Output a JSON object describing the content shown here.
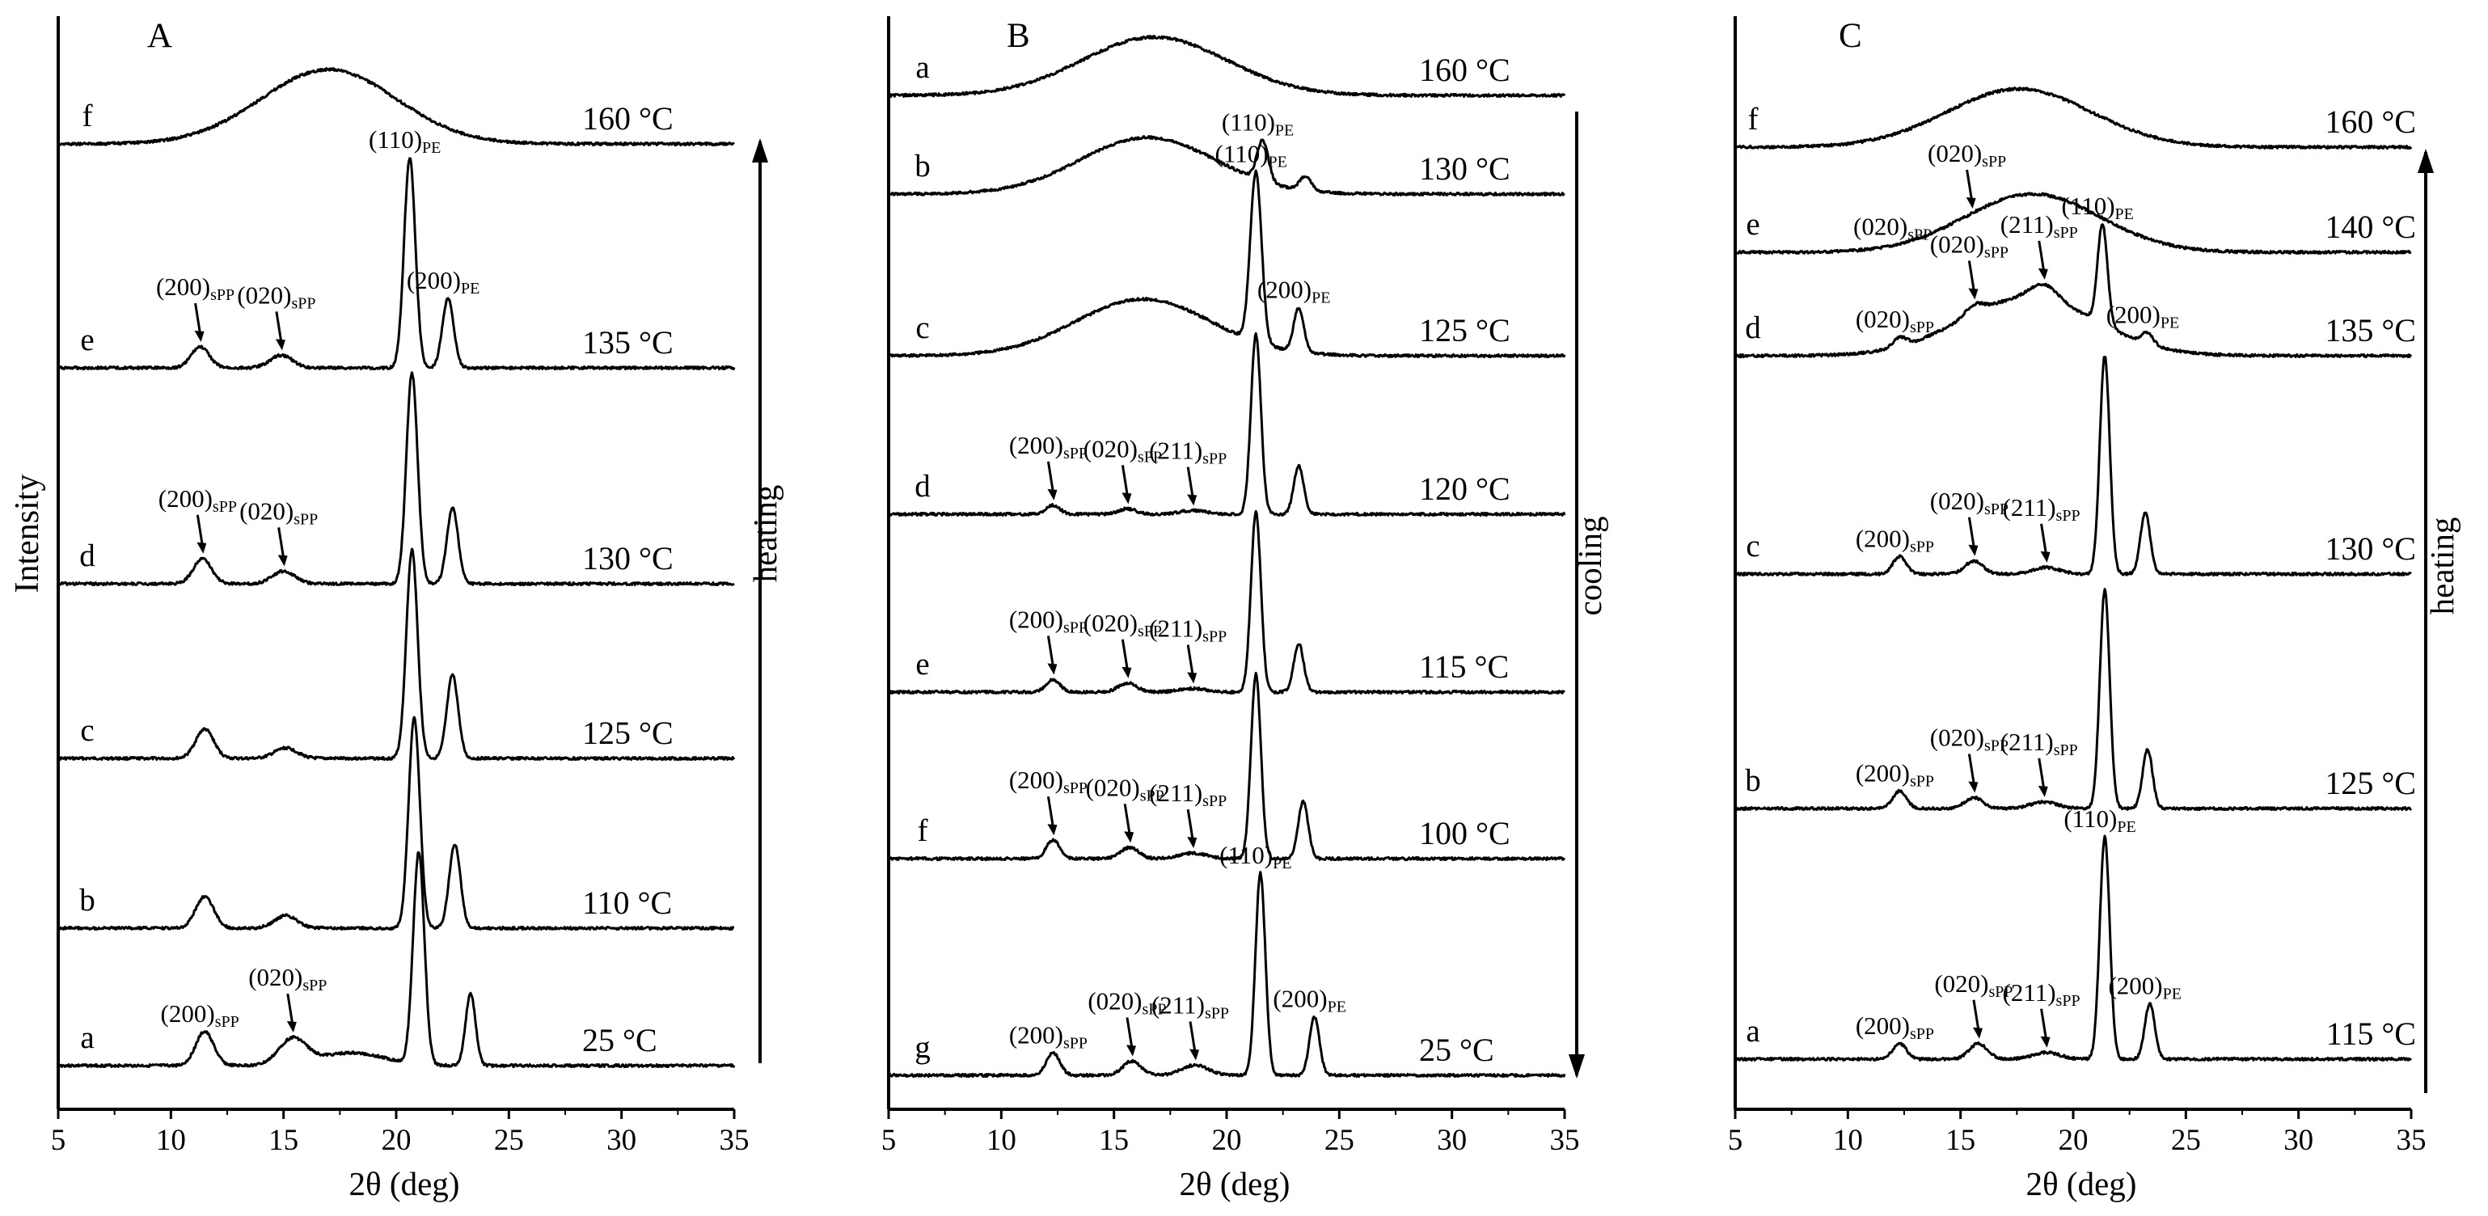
{
  "y_label": "Intensity",
  "x_label": "2θ (deg)",
  "colors": {
    "line": "#000000",
    "background": "#ffffff"
  },
  "chart_data": [
    {
      "type": "line",
      "panel": "A",
      "xlabel": "2θ (deg)",
      "ylabel": "Intensity",
      "xlim": [
        5,
        35
      ],
      "xticks": [
        5,
        10,
        15,
        20,
        25,
        30,
        35
      ],
      "direction": {
        "label": "heating",
        "arrow": "up"
      },
      "series": [
        {
          "name": "a",
          "temperature": "25 °C",
          "peaks": [
            [
              11.5,
              0.16,
              0.4
            ],
            [
              15.4,
              0.12,
              0.6
            ],
            [
              18.0,
              0.06,
              1.5
            ],
            [
              21.0,
              1.0,
              0.25
            ],
            [
              23.3,
              0.34,
              0.22
            ]
          ],
          "amorphous": []
        },
        {
          "name": "b",
          "temperature": "110 °C",
          "peaks": [
            [
              11.5,
              0.15,
              0.4
            ],
            [
              15.1,
              0.06,
              0.5
            ],
            [
              20.8,
              1.0,
              0.25
            ],
            [
              22.6,
              0.4,
              0.25
            ]
          ],
          "amorphous": []
        },
        {
          "name": "c",
          "temperature": "125 °C",
          "peaks": [
            [
              11.5,
              0.14,
              0.4
            ],
            [
              15.1,
              0.05,
              0.5
            ],
            [
              20.7,
              1.0,
              0.25
            ],
            [
              22.5,
              0.4,
              0.25
            ]
          ],
          "amorphous": []
        },
        {
          "name": "d",
          "temperature": "130 °C",
          "peaks": [
            [
              11.4,
              0.12,
              0.4
            ],
            [
              15.0,
              0.06,
              0.5
            ],
            [
              20.7,
              1.0,
              0.25
            ],
            [
              22.5,
              0.36,
              0.25
            ]
          ],
          "amorphous": []
        },
        {
          "name": "e",
          "temperature": "135 °C",
          "peaks": [
            [
              11.3,
              0.1,
              0.4
            ],
            [
              14.9,
              0.06,
              0.5
            ],
            [
              20.6,
              1.0,
              0.25
            ],
            [
              22.3,
              0.33,
              0.25
            ]
          ],
          "amorphous": []
        },
        {
          "name": "f",
          "temperature": "160 °C",
          "peaks": [],
          "amorphous": [
            17.0,
            0.28,
            3.0
          ]
        }
      ],
      "annotations": [
        {
          "curve": "e",
          "label": "(110)",
          "sub": "PE",
          "x": 20.6,
          "arrow": false
        },
        {
          "curve": "e",
          "label": "(200)",
          "sub": "PE",
          "x": 22.3,
          "arrow": false
        },
        {
          "curve": "e",
          "label": "(200)",
          "sub": "sPP",
          "x": 11.3,
          "arrow": true
        },
        {
          "curve": "e",
          "label": "(020)",
          "sub": "sPP",
          "x": 14.9,
          "arrow": true
        },
        {
          "curve": "d",
          "label": "(200)",
          "sub": "sPP",
          "x": 11.4,
          "arrow": true
        },
        {
          "curve": "d",
          "label": "(020)",
          "sub": "sPP",
          "x": 15.0,
          "arrow": true
        },
        {
          "curve": "a",
          "label": "(200)",
          "sub": "sPP",
          "x": 11.5,
          "arrow": false
        },
        {
          "curve": "a",
          "label": "(020)",
          "sub": "sPP",
          "x": 15.4,
          "arrow": true
        }
      ]
    },
    {
      "type": "line",
      "panel": "B",
      "xlabel": "2θ (deg)",
      "ylabel": "Intensity",
      "xlim": [
        5,
        35
      ],
      "xticks": [
        5,
        10,
        15,
        20,
        25,
        30,
        35
      ],
      "direction": {
        "label": "cooling",
        "arrow": "down"
      },
      "series": [
        {
          "name": "a",
          "temperature": "160 °C",
          "peaks": [],
          "amorphous": [
            16.8,
            0.22,
            3.2
          ]
        },
        {
          "name": "b",
          "temperature": "130 °C",
          "peaks": [
            [
              21.6,
              0.5,
              0.25
            ],
            [
              23.5,
              0.18,
              0.25
            ]
          ],
          "amorphous": [
            16.5,
            0.22,
            3.0
          ]
        },
        {
          "name": "c",
          "temperature": "125 °C",
          "peaks": [
            [
              21.3,
              1.0,
              0.25
            ],
            [
              23.2,
              0.26,
              0.22
            ]
          ],
          "amorphous": [
            16.3,
            0.12,
            3.0
          ]
        },
        {
          "name": "d",
          "temperature": "120 °C",
          "peaks": [
            [
              12.3,
              0.05,
              0.3
            ],
            [
              15.6,
              0.03,
              0.4
            ],
            [
              18.5,
              0.02,
              0.6
            ],
            [
              21.3,
              1.0,
              0.22
            ],
            [
              23.2,
              0.27,
              0.22
            ]
          ],
          "amorphous": []
        },
        {
          "name": "e",
          "temperature": "115 °C",
          "peaks": [
            [
              12.3,
              0.07,
              0.3
            ],
            [
              15.6,
              0.05,
              0.4
            ],
            [
              18.5,
              0.02,
              0.6
            ],
            [
              21.3,
              1.0,
              0.22
            ],
            [
              23.2,
              0.27,
              0.22
            ]
          ],
          "amorphous": []
        },
        {
          "name": "f",
          "temperature": "100 °C",
          "peaks": [
            [
              12.3,
              0.1,
              0.3
            ],
            [
              15.7,
              0.06,
              0.4
            ],
            [
              18.5,
              0.03,
              0.6
            ],
            [
              21.3,
              1.0,
              0.22
            ],
            [
              23.4,
              0.31,
              0.22
            ]
          ],
          "amorphous": []
        },
        {
          "name": "g",
          "temperature": "25 °C",
          "peaks": [
            [
              12.3,
              0.11,
              0.3
            ],
            [
              15.8,
              0.07,
              0.4
            ],
            [
              18.6,
              0.05,
              0.6
            ],
            [
              21.5,
              1.0,
              0.22
            ],
            [
              23.9,
              0.29,
              0.22
            ]
          ],
          "amorphous": []
        }
      ],
      "annotations": [
        {
          "curve": "b",
          "label": "(110)",
          "sub": "PE",
          "x": 21.6,
          "arrow": false
        },
        {
          "curve": "c",
          "label": "(110)",
          "sub": "PE",
          "x": 21.3,
          "arrow": false
        },
        {
          "curve": "c",
          "label": "(200)",
          "sub": "PE",
          "x": 23.2,
          "arrow": false
        },
        {
          "curve": "d",
          "label": "(200)",
          "sub": "sPP",
          "x": 12.3,
          "arrow": true
        },
        {
          "curve": "d",
          "label": "(020)",
          "sub": "sPP",
          "x": 15.6,
          "arrow": true
        },
        {
          "curve": "d",
          "label": "(211)",
          "sub": "sPP",
          "x": 18.5,
          "arrow": true
        },
        {
          "curve": "e",
          "label": "(200)",
          "sub": "sPP",
          "x": 12.3,
          "arrow": true
        },
        {
          "curve": "e",
          "label": "(020)",
          "sub": "sPP",
          "x": 15.6,
          "arrow": true
        },
        {
          "curve": "e",
          "label": "(211)",
          "sub": "sPP",
          "x": 18.5,
          "arrow": true
        },
        {
          "curve": "f",
          "label": "(200)",
          "sub": "sPP",
          "x": 12.3,
          "arrow": true
        },
        {
          "curve": "f",
          "label": "(020)",
          "sub": "sPP",
          "x": 15.7,
          "arrow": true
        },
        {
          "curve": "f",
          "label": "(211)",
          "sub": "sPP",
          "x": 18.5,
          "arrow": true
        },
        {
          "curve": "g",
          "label": "(110)",
          "sub": "PE",
          "x": 21.5,
          "arrow": false
        },
        {
          "curve": "g",
          "label": "(200)",
          "sub": "PE",
          "x": 23.9,
          "arrow": false
        },
        {
          "curve": "g",
          "label": "(200)",
          "sub": "sPP",
          "x": 12.3,
          "arrow": false
        },
        {
          "curve": "g",
          "label": "(020)",
          "sub": "sPP",
          "x": 15.8,
          "arrow": true
        },
        {
          "curve": "g",
          "label": "(211)",
          "sub": "sPP",
          "x": 18.6,
          "arrow": true
        }
      ]
    },
    {
      "type": "line",
      "panel": "C",
      "xlabel": "2θ (deg)",
      "ylabel": "Intensity",
      "xlim": [
        5,
        35
      ],
      "xticks": [
        5,
        10,
        15,
        20,
        25,
        30,
        35
      ],
      "direction": {
        "label": "heating",
        "arrow": "up"
      },
      "series": [
        {
          "name": "a",
          "temperature": "115 °C",
          "peaks": [
            [
              12.3,
              0.07,
              0.3
            ],
            [
              15.8,
              0.07,
              0.4
            ],
            [
              18.8,
              0.03,
              0.6
            ],
            [
              21.4,
              1.0,
              0.22
            ],
            [
              23.4,
              0.25,
              0.22
            ]
          ],
          "amorphous": []
        },
        {
          "name": "b",
          "temperature": "125 °C",
          "peaks": [
            [
              12.3,
              0.08,
              0.3
            ],
            [
              15.6,
              0.05,
              0.4
            ],
            [
              18.7,
              0.03,
              0.6
            ],
            [
              21.4,
              1.0,
              0.22
            ],
            [
              23.3,
              0.27,
              0.22
            ]
          ],
          "amorphous": []
        },
        {
          "name": "c",
          "temperature": "130 °C",
          "peaks": [
            [
              12.3,
              0.08,
              0.3
            ],
            [
              15.6,
              0.06,
              0.4
            ],
            [
              18.8,
              0.03,
              0.6
            ],
            [
              21.4,
              1.0,
              0.22
            ],
            [
              23.2,
              0.28,
              0.22
            ]
          ],
          "amorphous": []
        },
        {
          "name": "d",
          "temperature": "135 °C",
          "peaks": [
            [
              12.3,
              0.05,
              0.3
            ],
            [
              15.6,
              0.05,
              0.4
            ],
            [
              18.7,
              0.08,
              0.6
            ],
            [
              21.3,
              0.55,
              0.22
            ],
            [
              23.3,
              0.06,
              0.25
            ]
          ],
          "amorphous": [
            18.0,
            0.14,
            3.0
          ]
        },
        {
          "name": "e",
          "temperature": "140 °C",
          "peaks": [
            [
              12.2,
              0.05,
              0.3
            ],
            [
              15.5,
              0.04,
              0.4
            ]
          ],
          "amorphous": [
            18.2,
            0.22,
            3.0
          ]
        },
        {
          "name": "f",
          "temperature": "160 °C",
          "peaks": [],
          "amorphous": [
            17.6,
            0.2,
            3.2
          ]
        }
      ],
      "annotations": [
        {
          "curve": "e",
          "label": "(020)",
          "sub": "sPP",
          "x": 15.5,
          "arrow": true
        },
        {
          "curve": "e",
          "label": "(020)",
          "sub": "sPP",
          "x": 12.2,
          "arrow": false
        },
        {
          "curve": "d",
          "label": "(020)",
          "sub": "sPP",
          "x": 12.3,
          "arrow": false
        },
        {
          "curve": "d",
          "label": "(020)",
          "sub": "sPP",
          "x": 15.6,
          "arrow": true
        },
        {
          "curve": "d",
          "label": "(211)",
          "sub": "sPP",
          "x": 18.7,
          "arrow": true
        },
        {
          "curve": "d",
          "label": "(110)",
          "sub": "PE",
          "x": 21.3,
          "arrow": false
        },
        {
          "curve": "d",
          "label": "(200)",
          "sub": "PE",
          "x": 23.3,
          "arrow": false
        },
        {
          "curve": "c",
          "label": "(200)",
          "sub": "sPP",
          "x": 12.3,
          "arrow": false
        },
        {
          "curve": "c",
          "label": "(020)",
          "sub": "sPP",
          "x": 15.6,
          "arrow": true
        },
        {
          "curve": "c",
          "label": "(211)",
          "sub": "sPP",
          "x": 18.8,
          "arrow": true
        },
        {
          "curve": "b",
          "label": "(200)",
          "sub": "sPP",
          "x": 12.3,
          "arrow": false
        },
        {
          "curve": "b",
          "label": "(020)",
          "sub": "sPP",
          "x": 15.6,
          "arrow": true
        },
        {
          "curve": "b",
          "label": "(211)",
          "sub": "sPP",
          "x": 18.7,
          "arrow": true
        },
        {
          "curve": "a",
          "label": "(110)",
          "sub": "PE",
          "x": 21.4,
          "arrow": false
        },
        {
          "curve": "a",
          "label": "(200)",
          "sub": "PE",
          "x": 23.4,
          "arrow": false
        },
        {
          "curve": "a",
          "label": "(200)",
          "sub": "sPP",
          "x": 12.3,
          "arrow": false
        },
        {
          "curve": "a",
          "label": "(020)",
          "sub": "sPP",
          "x": 15.8,
          "arrow": true
        },
        {
          "curve": "a",
          "label": "(211)",
          "sub": "sPP",
          "x": 18.8,
          "arrow": true
        }
      ]
    }
  ]
}
